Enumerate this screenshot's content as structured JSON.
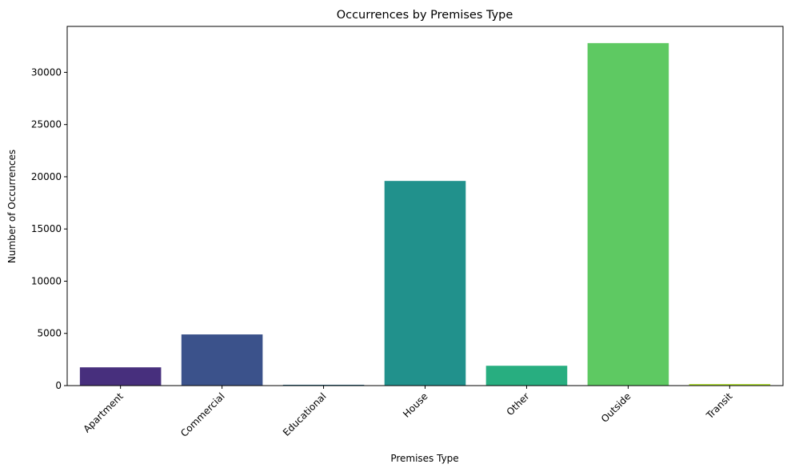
{
  "chart_data": {
    "type": "bar",
    "title": "Occurrences by Premises Type",
    "xlabel": "Premises Type",
    "ylabel": "Number of Occurrences",
    "categories": [
      "Apartment",
      "Commercial",
      "Educational",
      "House",
      "Other",
      "Outside",
      "Transit"
    ],
    "values": [
      1750,
      4900,
      80,
      19600,
      1900,
      32800,
      150
    ],
    "colors": [
      "#472f7d",
      "#3b528b",
      "#2c728e",
      "#21918c",
      "#28ae80",
      "#5ec962",
      "#addc30"
    ],
    "ylim": [
      0,
      34400
    ],
    "yticks": [
      0,
      5000,
      10000,
      15000,
      20000,
      25000,
      30000
    ],
    "grid": false,
    "legend": "none"
  }
}
